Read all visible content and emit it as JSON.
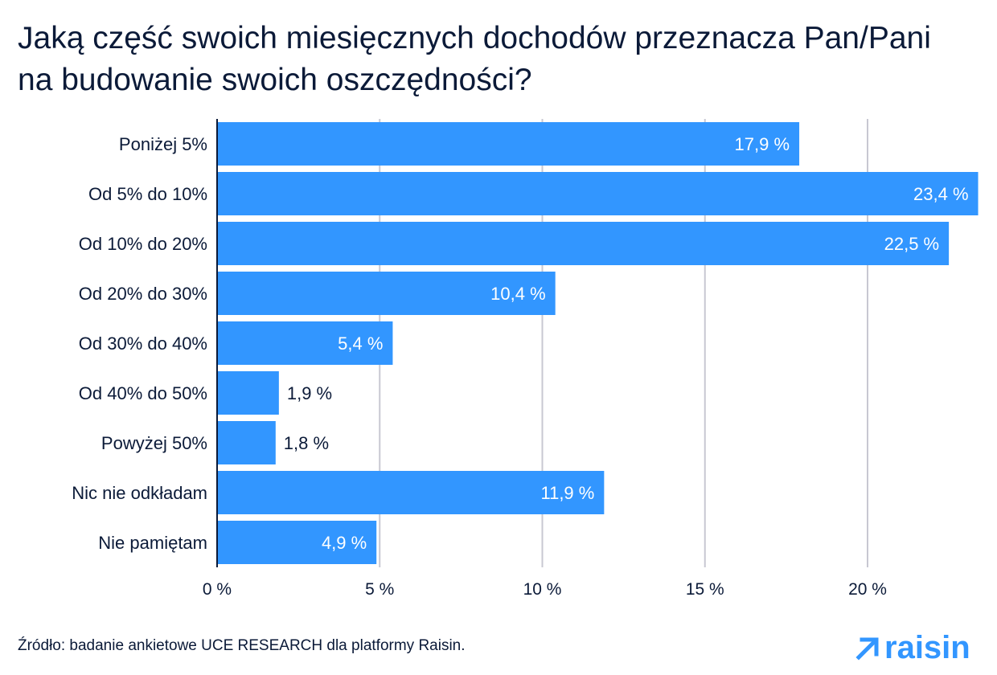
{
  "title": "Jaką część swoich miesięcznych dochodów przeznacza Pan/Pani na budowanie swoich oszczędności?",
  "source": "Źródło: badanie ankietowe UCE RESEARCH dla platformy Raisin.",
  "logo": {
    "text": "raisin",
    "color": "#3296ff"
  },
  "colors": {
    "bar": "#3296ff",
    "text": "#0b1a38",
    "grid": "#c8c8d2",
    "axis": "#0b1a38"
  },
  "chart_data": {
    "type": "bar",
    "orientation": "horizontal",
    "categories": [
      "Poniżej 5%",
      "Od 5% do 10%",
      "Od 10% do 20%",
      "Od 20% do 30%",
      "Od 30% do 40%",
      "Od 40% do 50%",
      "Powyżej 50%",
      "Nic nie odkładam",
      "Nie pamiętam"
    ],
    "values": [
      17.9,
      23.4,
      22.5,
      10.4,
      5.4,
      1.9,
      1.8,
      11.9,
      4.9
    ],
    "data_labels": [
      "17,9 %",
      "23,4 %",
      "22,5 %",
      "10,4 %",
      "5,4 %",
      "1,9 %",
      "1,8 %",
      "11,9 %",
      "4,9 %"
    ],
    "xticks": [
      0,
      5,
      10,
      15,
      20
    ],
    "xtick_labels": [
      "0 %",
      "5 %",
      "10 %",
      "15 %",
      "20 %"
    ],
    "xlim": [
      0,
      23.4
    ],
    "grid": true
  }
}
